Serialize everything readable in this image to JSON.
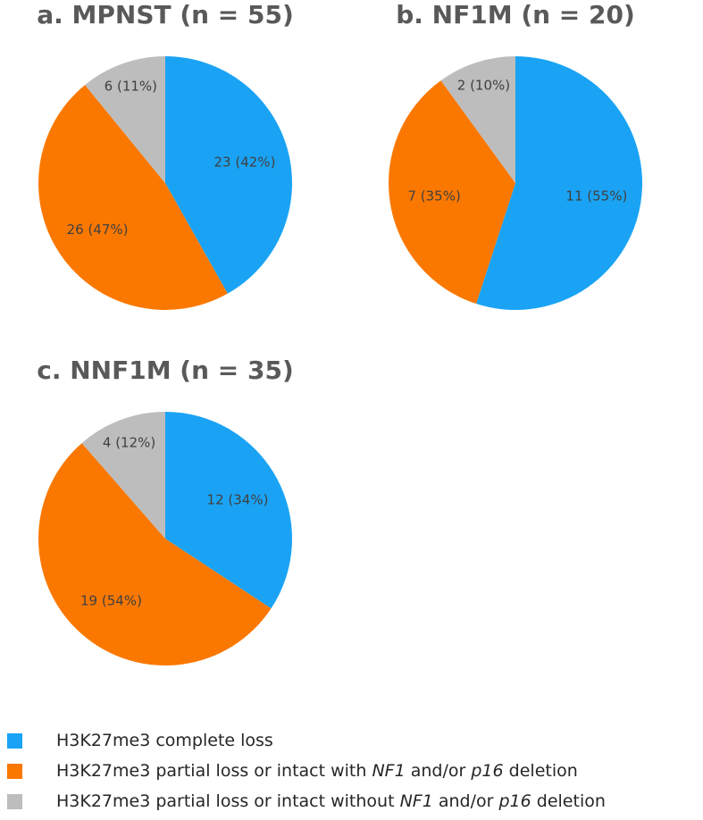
{
  "colors": {
    "complete_loss": "#1aa3f5",
    "partial_with_deletion": "#fa7800",
    "partial_without_deletion": "#bdbdbd"
  },
  "chart_data": [
    {
      "type": "pie",
      "title": "a. MPNST (n = 55)",
      "categories": [
        "H3K27me3 complete loss",
        "H3K27me3 partial loss or intact with NF1 and/or p16 deletion",
        "H3K27me3 partial loss or intact without NF1 and/or p16 deletion"
      ],
      "values": [
        23,
        26,
        6
      ],
      "data_labels": [
        "23 (42%)",
        "26 (47%)",
        "6 (11%)"
      ]
    },
    {
      "type": "pie",
      "title": "b. NF1M (n = 20)",
      "categories": [
        "H3K27me3 complete loss",
        "H3K27me3 partial loss or intact with NF1 and/or p16 deletion",
        "H3K27me3 partial loss or intact without NF1 and/or p16 deletion"
      ],
      "values": [
        11,
        7,
        2
      ],
      "data_labels": [
        "11 (55%)",
        "7 (35%)",
        "2 (10%)"
      ]
    },
    {
      "type": "pie",
      "title": "c. NNF1M (n = 35)",
      "categories": [
        "H3K27me3 complete loss",
        "H3K27me3 partial loss or intact with NF1 and/or p16 deletion",
        "H3K27me3 partial loss or intact without NF1 and/or p16 deletion"
      ],
      "values": [
        12,
        19,
        4
      ],
      "data_labels": [
        "12 (34%)",
        "19 (54%)",
        "4 (12%)"
      ]
    }
  ],
  "legend": [
    {
      "parts": [
        {
          "text": "H3K27me3 complete loss",
          "italic": false
        }
      ]
    },
    {
      "parts": [
        {
          "text": "H3K27me3 partial loss or intact with ",
          "italic": false
        },
        {
          "text": "NF1",
          "italic": true
        },
        {
          "text": " and/or ",
          "italic": false
        },
        {
          "text": "p16",
          "italic": true
        },
        {
          "text": " deletion",
          "italic": false
        }
      ]
    },
    {
      "parts": [
        {
          "text": "H3K27me3 partial loss or intact without ",
          "italic": false
        },
        {
          "text": "NF1",
          "italic": true
        },
        {
          "text": " and/or ",
          "italic": false
        },
        {
          "text": "p16",
          "italic": true
        },
        {
          "text": " deletion",
          "italic": false
        }
      ]
    }
  ]
}
